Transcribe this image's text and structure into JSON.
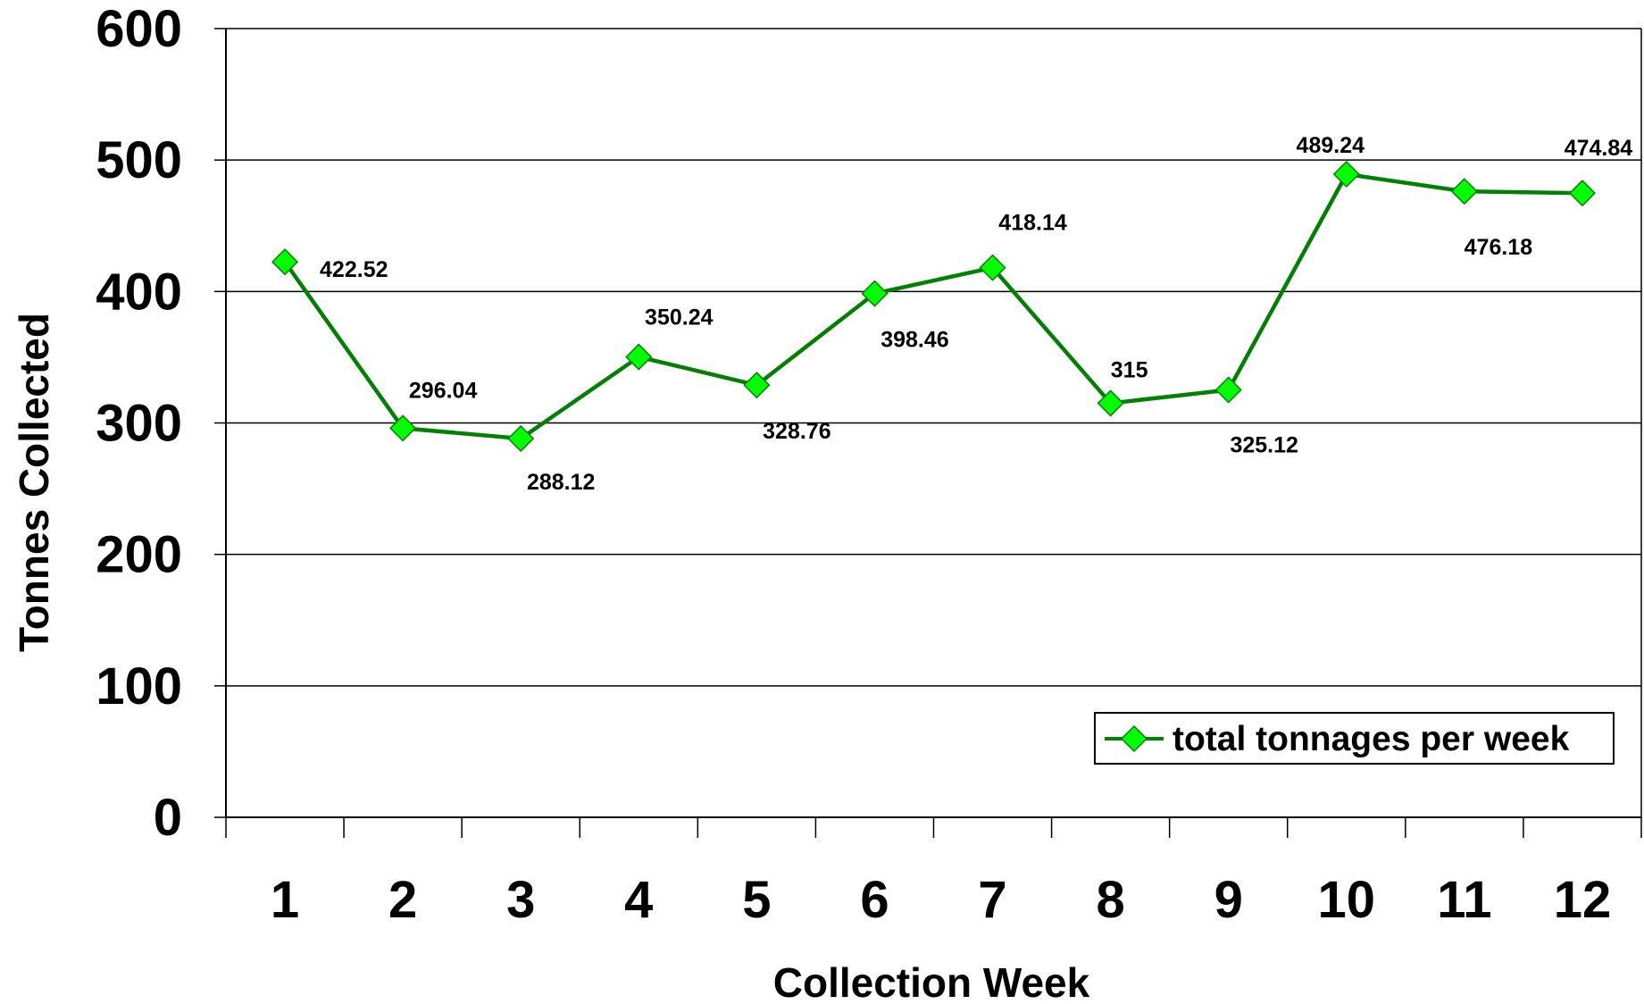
{
  "chart_data": {
    "type": "line",
    "title": "",
    "xlabel": "Collection Week",
    "ylabel": "Tonnes Collected",
    "ylim": [
      0,
      600
    ],
    "yticks": [
      "0",
      "100",
      "200",
      "300",
      "400",
      "500",
      "600"
    ],
    "categories": [
      "1",
      "2",
      "3",
      "4",
      "5",
      "6",
      "7",
      "8",
      "9",
      "10",
      "11",
      "12"
    ],
    "grid": "horizontal major gridlines",
    "legend_position": "bottom-right, inside plot area",
    "series": [
      {
        "name": "total tonnages per week",
        "values": [
          422.52,
          296.04,
          288.12,
          350.24,
          328.76,
          398.46,
          418.14,
          315,
          325.12,
          489.24,
          476.18,
          474.84
        ],
        "data_labels": [
          "422.52",
          "296.04",
          "288.12",
          "350.24",
          "328.76",
          "398.46",
          "418.14",
          "315",
          "325.12",
          "489.24",
          "476.18",
          "474.84"
        ],
        "line_color": "#008000",
        "marker_color": "#00ff00",
        "marker": "diamond"
      }
    ]
  }
}
